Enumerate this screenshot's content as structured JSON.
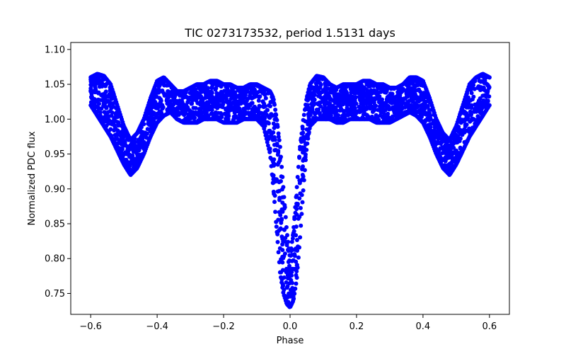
{
  "chart_data": {
    "type": "scatter",
    "title": "TIC 0273173532, period 1.5131 days",
    "xlabel": "Phase",
    "ylabel": "Normalized PDC flux",
    "xlim": [
      -0.66,
      0.66
    ],
    "ylim": [
      0.72,
      1.11
    ],
    "xticks": [
      -0.6,
      -0.4,
      -0.2,
      0.0,
      0.2,
      0.4,
      0.6
    ],
    "xtick_labels": [
      "−0.6",
      "−0.4",
      "−0.2",
      "0.0",
      "0.2",
      "0.4",
      "0.6"
    ],
    "yticks": [
      0.75,
      0.8,
      0.85,
      0.9,
      0.95,
      1.0,
      1.05,
      1.1
    ],
    "ytick_labels": [
      "0.75",
      "0.80",
      "0.85",
      "0.90",
      "0.95",
      "1.00",
      "1.05",
      "1.10"
    ],
    "grid": false,
    "series": [
      {
        "name": "flux",
        "color": "#0000ff",
        "phase": [
          -0.6,
          -0.58,
          -0.56,
          -0.54,
          -0.52,
          -0.5,
          -0.48,
          -0.46,
          -0.44,
          -0.42,
          -0.4,
          -0.38,
          -0.36,
          -0.34,
          -0.32,
          -0.3,
          -0.28,
          -0.26,
          -0.24,
          -0.22,
          -0.2,
          -0.18,
          -0.16,
          -0.14,
          -0.12,
          -0.1,
          -0.08,
          -0.06,
          -0.05,
          -0.04,
          -0.03,
          -0.02,
          -0.01,
          0.0,
          0.01,
          0.02,
          0.03,
          0.04,
          0.05,
          0.06,
          0.08,
          0.1,
          0.12,
          0.14,
          0.16,
          0.18,
          0.2,
          0.22,
          0.24,
          0.26,
          0.28,
          0.3,
          0.32,
          0.34,
          0.36,
          0.38,
          0.4,
          0.42,
          0.44,
          0.46,
          0.48,
          0.5,
          0.52,
          0.54,
          0.56,
          0.58,
          0.6
        ],
        "flux_upper": [
          1.06,
          1.065,
          1.062,
          1.05,
          1.02,
          0.99,
          0.97,
          0.98,
          1.0,
          1.03,
          1.055,
          1.06,
          1.05,
          1.04,
          1.04,
          1.045,
          1.05,
          1.05,
          1.055,
          1.055,
          1.05,
          1.05,
          1.045,
          1.045,
          1.05,
          1.05,
          1.045,
          1.04,
          1.03,
          1.0,
          0.96,
          0.9,
          0.84,
          0.8,
          0.84,
          0.9,
          0.96,
          1.0,
          1.03,
          1.05,
          1.062,
          1.06,
          1.05,
          1.045,
          1.05,
          1.05,
          1.05,
          1.055,
          1.055,
          1.05,
          1.05,
          1.045,
          1.045,
          1.05,
          1.06,
          1.06,
          1.055,
          1.03,
          1.0,
          0.98,
          0.97,
          0.99,
          1.02,
          1.05,
          1.06,
          1.065,
          1.06
        ],
        "flux_lower": [
          1.02,
          1.005,
          0.99,
          0.975,
          0.955,
          0.935,
          0.92,
          0.93,
          0.95,
          0.975,
          0.995,
          1.005,
          1.01,
          1.0,
          0.995,
          0.995,
          0.995,
          1.0,
          1.0,
          1.0,
          0.995,
          0.995,
          0.995,
          1.0,
          1.0,
          1.0,
          0.99,
          0.95,
          0.9,
          0.84,
          0.78,
          0.75,
          0.735,
          0.73,
          0.74,
          0.77,
          0.83,
          0.9,
          0.96,
          0.99,
          1.0,
          1.0,
          1.0,
          0.995,
          0.995,
          1.0,
          1.0,
          1.0,
          1.0,
          0.995,
          0.995,
          0.995,
          1.0,
          1.005,
          1.01,
          1.005,
          0.995,
          0.975,
          0.95,
          0.93,
          0.92,
          0.935,
          0.955,
          0.975,
          0.99,
          1.005,
          1.02
        ]
      }
    ]
  }
}
